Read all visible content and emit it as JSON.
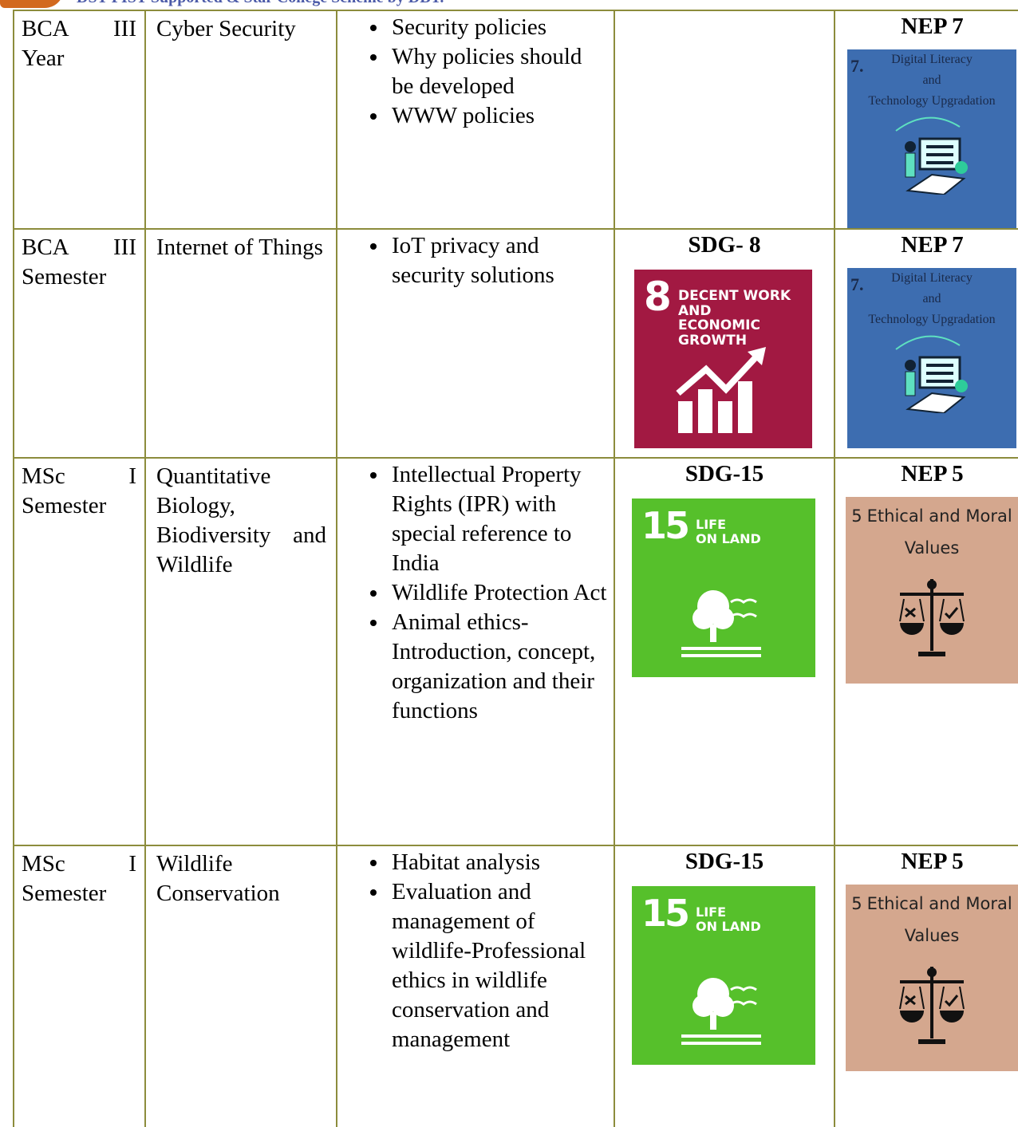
{
  "header": {
    "text": "DST-FIST Supported & Star College Scheme by DBT."
  },
  "table": {
    "rows": [
      {
        "class": "BCA III Year",
        "course": "Cyber Security",
        "topics": [
          "Security policies",
          "Why policies should be developed",
          "WWW policies"
        ],
        "nep": {
          "label": "NEP 7",
          "image": {
            "number": "7.",
            "lines": [
              "Digital Literacy",
              "and",
              "Technology Upgradation"
            ]
          }
        }
      },
      {
        "class": "BCA III Semester",
        "course": "Internet of Things",
        "topics": [
          "IoT privacy and security solutions"
        ],
        "sdg": {
          "label": "SDG- 8",
          "image": {
            "number": "8",
            "lines": [
              "DECENT WORK AND",
              "ECONOMIC GROWTH"
            ]
          }
        },
        "nep": {
          "label": "NEP 7",
          "image": {
            "number": "7.",
            "lines": [
              "Digital Literacy",
              "and",
              "Technology Upgradation"
            ]
          }
        }
      },
      {
        "class": "MSc I Semester",
        "course": "Quantitative Biology, Biodiversity and Wildlife",
        "topics": [
          "Intellectual Property Rights (IPR) with special reference to India",
          "Wildlife Protection Act",
          "Animal ethics-Introduction, concept, organization and their functions"
        ],
        "sdg": {
          "label": "SDG-15",
          "image": {
            "number": "15",
            "lines": [
              "LIFE",
              "ON LAND"
            ]
          }
        },
        "nep": {
          "label": "NEP 5",
          "image": {
            "number": "5",
            "lines": [
              "Ethical and Moral",
              "Values"
            ]
          }
        }
      },
      {
        "class": "MSc I Semester",
        "course": "Wildlife Conservation",
        "topics": [
          "Habitat analysis",
          "Evaluation and management of wildlife-Professional ethics in wildlife conservation and management"
        ],
        "sdg": {
          "label": "SDG-15",
          "image": {
            "number": "15",
            "lines": [
              "LIFE",
              "ON LAND"
            ]
          }
        },
        "nep": {
          "label": "NEP 5",
          "image": {
            "number": "5",
            "lines": [
              "Ethical and Moral",
              "Values"
            ]
          }
        }
      }
    ]
  }
}
